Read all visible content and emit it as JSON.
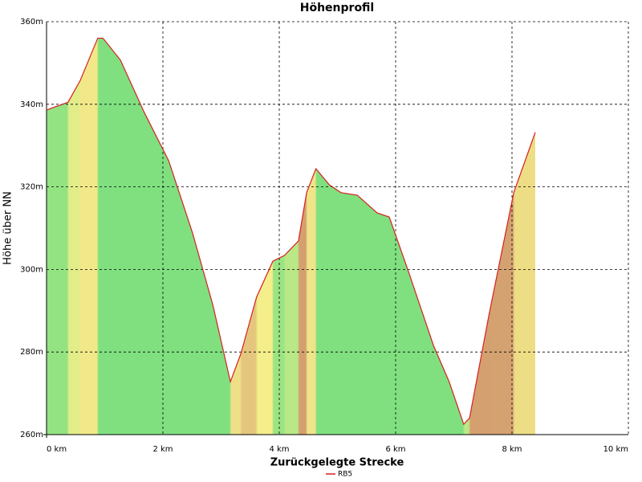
{
  "chart_data": {
    "type": "area",
    "title": "Höhenprofil",
    "xlabel": "Zurückgelegte Strecke",
    "ylabel": "Höhe über NN",
    "x": [
      0,
      0.37,
      0.58,
      0.88,
      0.97,
      1.27,
      1.68,
      2.1,
      2.51,
      2.86,
      3.16,
      3.34,
      3.61,
      3.89,
      4.09,
      4.33,
      4.47,
      4.63,
      4.86,
      5.06,
      5.34,
      5.68,
      5.89,
      6.23,
      6.65,
      6.92,
      7.17,
      7.27,
      7.61,
      8.03,
      8.4
    ],
    "series": [
      {
        "name": "RB5",
        "color": "#d62020",
        "values": [
          338.6,
          340.5,
          345.8,
          356,
          356,
          350.7,
          338,
          326.3,
          308.8,
          291.3,
          272.8,
          279.6,
          293.3,
          302,
          303.4,
          306.9,
          318.6,
          324.4,
          320.5,
          318.6,
          318,
          313.7,
          312.7,
          299.1,
          281.6,
          272.8,
          262.5,
          264,
          289.4,
          318.6,
          333.2
        ]
      }
    ],
    "xlim": [
      0,
      10
    ],
    "ylim": [
      260,
      360
    ],
    "xticks": [
      {
        "value": 0,
        "label": "0 km"
      },
      {
        "value": 2,
        "label": "2 km"
      },
      {
        "value": 4,
        "label": "4 km"
      },
      {
        "value": 6,
        "label": "6 km"
      },
      {
        "value": 8,
        "label": "8 km"
      },
      {
        "value": 10,
        "label": "10 km"
      }
    ],
    "yticks": [
      {
        "value": 260,
        "label": "260m"
      },
      {
        "value": 280,
        "label": "280m"
      },
      {
        "value": 300,
        "label": "300m"
      },
      {
        "value": 320,
        "label": "320m"
      },
      {
        "value": 340,
        "label": "340m"
      },
      {
        "value": 360,
        "label": "360m"
      }
    ],
    "grid": true,
    "legend": "bottom"
  }
}
